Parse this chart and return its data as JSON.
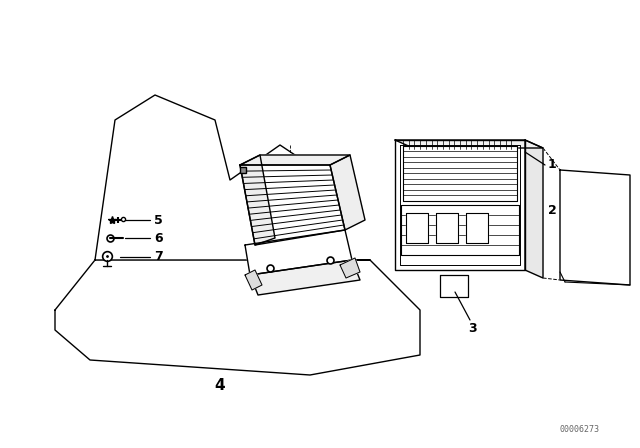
{
  "background_color": "#ffffff",
  "line_color": "#000000",
  "fig_width": 6.4,
  "fig_height": 4.48,
  "dpi": 100,
  "watermark": "00006273",
  "label_fontsize": 9,
  "label_bold_fontsize": 11
}
